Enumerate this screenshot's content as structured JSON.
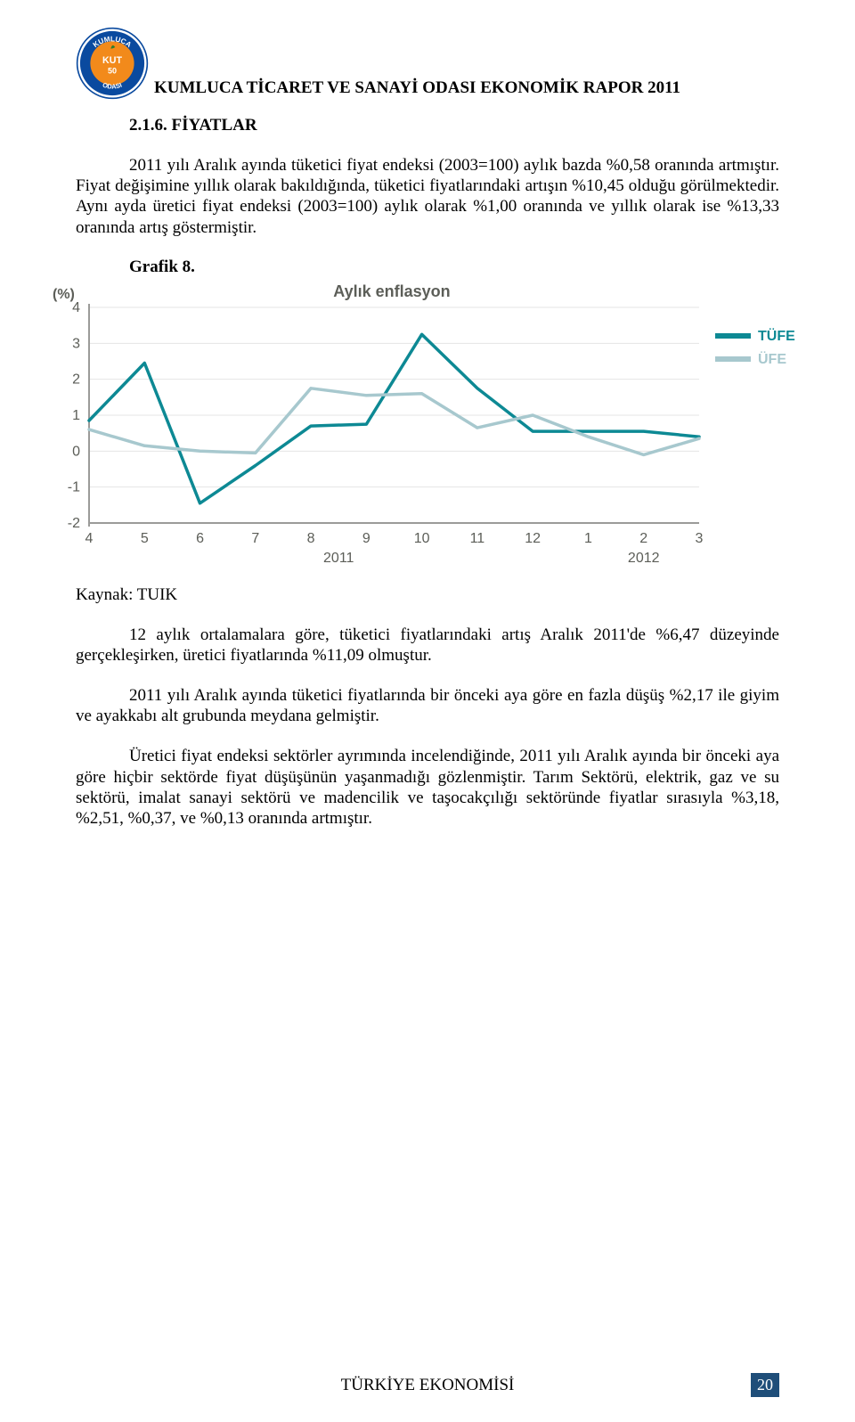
{
  "header": {
    "title": "KUMLUCA TİCARET VE SANAYİ ODASI EKONOMİK RAPOR 2011"
  },
  "section": {
    "number": "2.1.6.",
    "title": "FİYATLAR"
  },
  "paragraphs": {
    "p1": "2011 yılı Aralık ayında tüketici fiyat endeksi (2003=100) aylık bazda %0,58 oranında artmıştır. Fiyat değişimine yıllık olarak bakıldığında, tüketici fiyatlarındaki artışın %10,45 olduğu görülmektedir. Aynı ayda üretici fiyat endeksi (2003=100) aylık olarak %1,00 oranında ve yıllık olarak ise %13,33 oranında artış göstermiştir.",
    "grafik_label": "Grafik 8.",
    "kaynak": "Kaynak: TUIK",
    "p2": "12 aylık ortalamalara göre, tüketici fiyatlarındaki artış Aralık 2011'de %6,47 düzeyinde gerçekleşirken, üretici fiyatlarında %11,09 olmuştur.",
    "p3": "2011 yılı Aralık ayında tüketici fiyatlarında bir önceki aya göre en fazla düşüş %2,17 ile giyim ve ayakkabı alt grubunda meydana gelmiştir.",
    "p4": "Üretici fiyat endeksi sektörler ayrımında incelendiğinde, 2011 yılı Aralık ayında bir önceki aya göre hiçbir sektörde fiyat düşüşünün yaşanmadığı gözlenmiştir. Tarım Sektörü, elektrik, gaz ve su sektörü, imalat sanayi sektörü ve madencilik ve taşocakçılığı sektöründe fiyatlar sırasıyla %3,18, %2,51, %0,37, ve %0,13 oranında artmıştır."
  },
  "chart": {
    "type": "line",
    "title": "Aylık enflasyon",
    "y_axis_label": "(%)",
    "y_ticks": [
      -2,
      -1,
      0,
      1,
      2,
      3,
      4
    ],
    "x_labels": [
      "4",
      "5",
      "6",
      "7",
      "8",
      "9",
      "10",
      "11",
      "12",
      "1",
      "2",
      "3"
    ],
    "year_labels": [
      {
        "label": "2011",
        "center_index": 4.5
      },
      {
        "label": "2012",
        "center_index": 10
      }
    ],
    "ylim": [
      -2,
      4
    ],
    "line_width": 3.5,
    "background_color": "#ffffff",
    "grid_color": "#e4e4e4",
    "axis_color": "#9b9b99",
    "series": [
      {
        "name": "TÜFE",
        "color": "#0d8994",
        "values": [
          0.85,
          2.45,
          -1.45,
          -0.4,
          0.7,
          0.75,
          3.25,
          1.75,
          0.55,
          0.55,
          0.55,
          0.4
        ],
        "legend_text": "TÜFE"
      },
      {
        "name": "ÜFE",
        "color": "#a7c8ce",
        "values": [
          0.6,
          0.15,
          0.0,
          -0.05,
          1.75,
          1.55,
          1.6,
          0.65,
          1.0,
          0.4,
          -0.1,
          0.35
        ],
        "legend_text": "ÜFE"
      }
    ]
  },
  "footer": {
    "text": "TÜRKİYE EKONOMİSİ",
    "page_number": "20"
  },
  "logo": {
    "outer_text_top": "KUMLUCA",
    "outer_text_bottom": "ODASI",
    "inner_text": "KUT",
    "badge_text": "50",
    "outer_ring_color": "#0a4a9f",
    "inner_circle_color": "#f28a1b",
    "text_color": "#ffffff"
  }
}
